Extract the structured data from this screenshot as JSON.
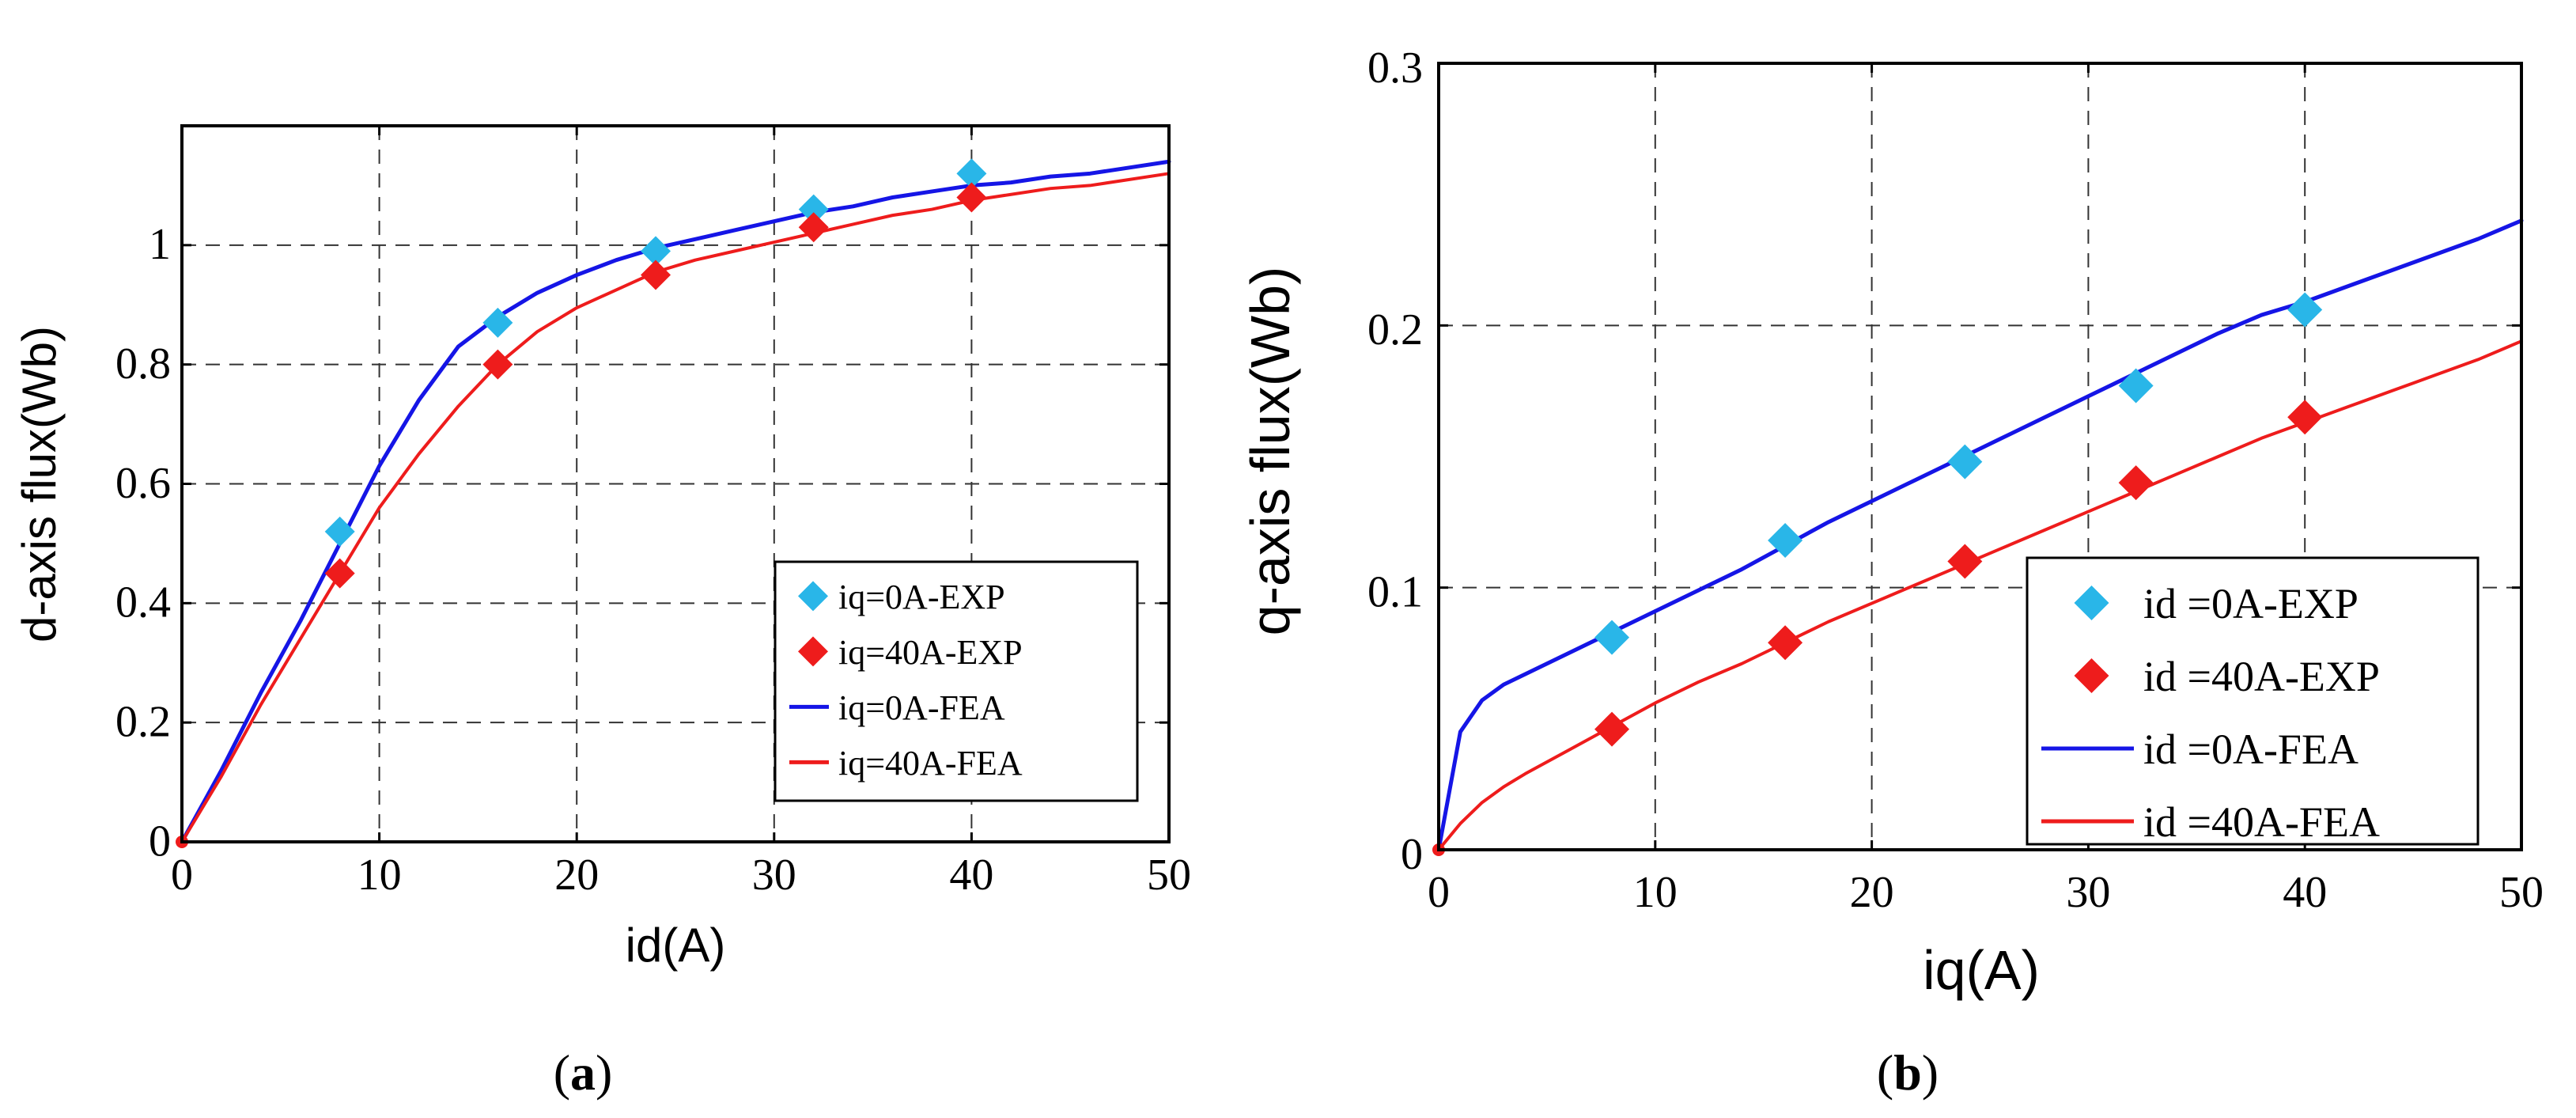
{
  "chart_data": [
    {
      "type": "line",
      "caption_letter": "a",
      "xlabel": "id(A)",
      "ylabel": "d-axis flux(Wb)",
      "xlim": [
        0,
        50
      ],
      "ylim": [
        0,
        1.2
      ],
      "xticks": [
        "0",
        "10",
        "20",
        "30",
        "40",
        "50"
      ],
      "xtick_values": [
        0,
        10,
        20,
        30,
        40,
        50
      ],
      "yticks": [
        "0",
        "0.2",
        "0.4",
        "0.6",
        "0.8",
        "1"
      ],
      "ytick_values": [
        0,
        0.2,
        0.4,
        0.6,
        0.8,
        1.0
      ],
      "ygrid": [
        0.2,
        0.4,
        0.6,
        0.8,
        1.0
      ],
      "xgrid": [
        10,
        20,
        30,
        40
      ],
      "grid": true,
      "legend_position": "bottom-right",
      "series": [
        {
          "name": "iq=0A-EXP",
          "kind": "marker",
          "color": "#29b6e8",
          "x": [
            8,
            16,
            24,
            32,
            40
          ],
          "y": [
            0.52,
            0.87,
            0.99,
            1.06,
            1.12
          ]
        },
        {
          "name": "iq=40A-EXP",
          "kind": "marker",
          "color": "#ee1c1c",
          "x": [
            8,
            16,
            24,
            32,
            40
          ],
          "y": [
            0.45,
            0.8,
            0.95,
            1.03,
            1.08
          ]
        },
        {
          "name": "iq=0A-FEA",
          "kind": "line",
          "color": "#1515e6",
          "x": [
            0,
            2,
            4,
            6,
            8,
            10,
            12,
            14,
            16,
            18,
            20,
            22,
            24,
            26,
            28,
            30,
            32,
            34,
            36,
            38,
            40,
            42,
            44,
            46,
            48,
            50
          ],
          "y": [
            0,
            0.12,
            0.25,
            0.37,
            0.5,
            0.63,
            0.74,
            0.83,
            0.88,
            0.92,
            0.95,
            0.975,
            0.995,
            1.01,
            1.025,
            1.04,
            1.055,
            1.065,
            1.08,
            1.09,
            1.1,
            1.105,
            1.115,
            1.12,
            1.13,
            1.14
          ]
        },
        {
          "name": "iq=40A-FEA",
          "kind": "line",
          "color": "#ee1c1c",
          "x": [
            0,
            2,
            4,
            6,
            8,
            10,
            12,
            14,
            16,
            18,
            20,
            22,
            24,
            26,
            28,
            30,
            32,
            34,
            36,
            38,
            40,
            42,
            44,
            46,
            48,
            50
          ],
          "y": [
            0,
            0.11,
            0.23,
            0.34,
            0.45,
            0.56,
            0.65,
            0.73,
            0.8,
            0.855,
            0.895,
            0.925,
            0.955,
            0.975,
            0.99,
            1.005,
            1.02,
            1.035,
            1.05,
            1.06,
            1.075,
            1.085,
            1.095,
            1.1,
            1.11,
            1.12
          ]
        }
      ]
    },
    {
      "type": "line",
      "caption_letter": "b",
      "xlabel": "iq(A)",
      "ylabel": "q-axis flux(Wb)",
      "xlim": [
        0,
        50
      ],
      "ylim": [
        0,
        0.3
      ],
      "xticks": [
        "0",
        "10",
        "20",
        "30",
        "40",
        "50"
      ],
      "xtick_values": [
        0,
        10,
        20,
        30,
        40,
        50
      ],
      "yticks": [
        "0",
        "0.1",
        "0.2",
        "0.3"
      ],
      "ytick_values": [
        0,
        0.1,
        0.2,
        0.3
      ],
      "ygrid": [
        0.1,
        0.2
      ],
      "xgrid": [
        10,
        20,
        30,
        40
      ],
      "grid": true,
      "legend_position": "bottom-right",
      "series": [
        {
          "name": "id =0A-EXP",
          "kind": "marker",
          "color": "#29b6e8",
          "x": [
            8,
            16,
            24.3,
            32.2,
            40
          ],
          "y": [
            0.081,
            0.118,
            0.148,
            0.177,
            0.206
          ]
        },
        {
          "name": "id =40A-EXP",
          "kind": "marker",
          "color": "#ee1c1c",
          "x": [
            8,
            16,
            24.3,
            32.2,
            40
          ],
          "y": [
            0.046,
            0.079,
            0.11,
            0.14,
            0.165
          ]
        },
        {
          "name": "id =0A-FEA",
          "kind": "line",
          "color": "#1515e6",
          "x": [
            0,
            1,
            2,
            3,
            4,
            6,
            8,
            10,
            12,
            14,
            16,
            18,
            20,
            22,
            24,
            26,
            28,
            30,
            32,
            34,
            36,
            38,
            40,
            42,
            44,
            46,
            48,
            50
          ],
          "y": [
            0,
            0.045,
            0.057,
            0.063,
            0.067,
            0.075,
            0.083,
            0.091,
            0.099,
            0.107,
            0.116,
            0.125,
            0.133,
            0.141,
            0.149,
            0.157,
            0.165,
            0.173,
            0.181,
            0.189,
            0.197,
            0.204,
            0.209,
            0.215,
            0.221,
            0.227,
            0.233,
            0.24
          ]
        },
        {
          "name": "id =40A-FEA",
          "kind": "line",
          "color": "#ee1c1c",
          "x": [
            0,
            1,
            2,
            3,
            4,
            6,
            8,
            10,
            12,
            14,
            16,
            18,
            20,
            22,
            24,
            26,
            28,
            30,
            32,
            34,
            36,
            38,
            40,
            42,
            44,
            46,
            48,
            50
          ],
          "y": [
            0,
            0.01,
            0.018,
            0.024,
            0.029,
            0.038,
            0.047,
            0.056,
            0.064,
            0.071,
            0.079,
            0.087,
            0.094,
            0.101,
            0.108,
            0.115,
            0.122,
            0.129,
            0.136,
            0.143,
            0.15,
            0.157,
            0.163,
            0.169,
            0.175,
            0.181,
            0.187,
            0.194
          ]
        }
      ]
    }
  ]
}
